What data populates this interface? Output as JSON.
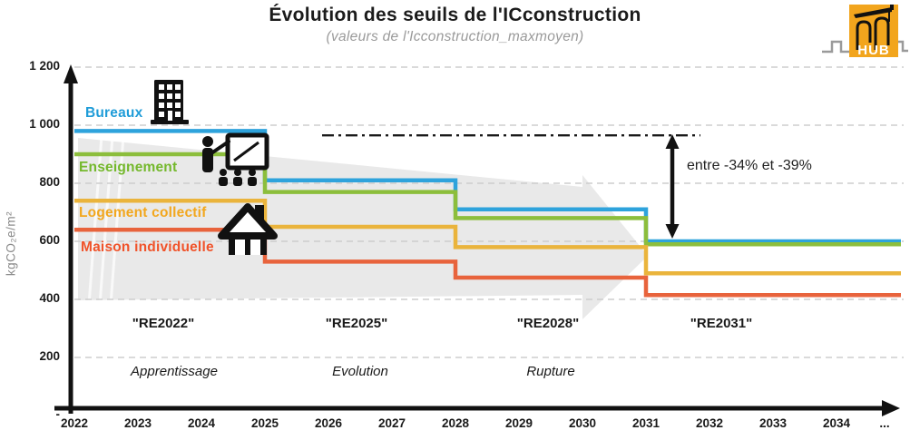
{
  "header": {
    "title": "Évolution des seuils de l'ICconstruction",
    "subtitle": "(valeurs de l'Icconstruction_maxmoyen)"
  },
  "logo": {
    "text": "HUB",
    "color": "#F2A51D"
  },
  "icons": {
    "bureaux": "office-building-icon",
    "enseignement": "teacher-blackboard-icon",
    "logement": "house-icon"
  },
  "chart_data": {
    "type": "line",
    "subtype": "step",
    "title": "Évolution des seuils de l'ICconstruction",
    "subtitle": "(valeurs de l'Icconstruction_maxmoyen)",
    "ylabel": "kgCO₂e/m²",
    "ylim": [
      0,
      1200
    ],
    "grid": true,
    "legend_position": "on-chart-left",
    "y_ticks": [
      {
        "label": "1 200",
        "value": 1200
      },
      {
        "label": "1 000",
        "value": 1000
      },
      {
        "label": "800",
        "value": 800
      },
      {
        "label": "600",
        "value": 600
      },
      {
        "label": "400",
        "value": 400
      },
      {
        "label": "200",
        "value": 200
      },
      {
        "label": "-",
        "value": 0
      }
    ],
    "x_labels": [
      "2022",
      "2023",
      "2024",
      "2025",
      "2026",
      "2027",
      "2028",
      "2029",
      "2030",
      "2031",
      "2032",
      "2033",
      "2034",
      "..."
    ],
    "step_years": [
      2022,
      2025,
      2028,
      2031
    ],
    "series": [
      {
        "name": "Bureaux",
        "color": "#2EA3DC",
        "label_color": "#1F9CD8",
        "values": [
          980,
          810,
          710,
          600
        ]
      },
      {
        "name": "Enseignement",
        "color": "#8CBE3C",
        "label_color": "#74B82C",
        "values": [
          900,
          770,
          680,
          590
        ]
      },
      {
        "name": "Logement collectif",
        "color": "#EAB43C",
        "label_color": "#F2A71E",
        "values": [
          740,
          650,
          580,
          490
        ]
      },
      {
        "name": "Maison individuelle",
        "color": "#E8633C",
        "label_color": "#F0532A",
        "values": [
          640,
          530,
          475,
          415
        ]
      }
    ],
    "reference_line": {
      "style": "dash-dot",
      "value": 965
    },
    "annotation": {
      "label": "entre -34% et -39%",
      "from_value": 965,
      "to_value": 600
    },
    "periods": [
      {
        "name": "\"RE2022\"",
        "phase": "Apprentissage"
      },
      {
        "name": "\"RE2025\"",
        "phase": "Evolution"
      },
      {
        "name": "\"RE2028\"",
        "phase": "Rupture"
      },
      {
        "name": "\"RE2031\"",
        "phase": ""
      }
    ]
  }
}
